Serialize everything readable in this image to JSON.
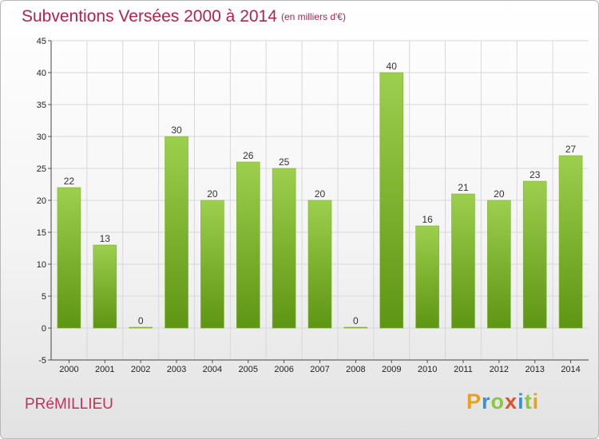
{
  "header": {
    "title": "Subventions Versées 2000 à 2014",
    "subtitle": "(en milliers d'€)"
  },
  "footer": {
    "commune": "PRéMILLIEU",
    "logo": "Proxiti",
    "logo_letters": [
      {
        "ch": "P",
        "color": "#e8a21a"
      },
      {
        "ch": "r",
        "color": "#3b8fd6"
      },
      {
        "ch": "o",
        "color": "#8cc63f"
      },
      {
        "ch": "x",
        "color": "#e0522a"
      },
      {
        "ch": "i",
        "color": "#3b8fd6"
      },
      {
        "ch": "t",
        "color": "#8cc63f"
      },
      {
        "ch": "i",
        "color": "#e8a21a"
      }
    ]
  },
  "colors": {
    "title": "#b5214d",
    "bar_top": "#9ccf4d",
    "bar_bottom": "#5e9512",
    "grid": "#d8d8d8"
  },
  "chart_data": {
    "type": "bar",
    "title": "Subventions Versées 2000 à 2014",
    "subtitle": "(en milliers d'€)",
    "xlabel": "",
    "ylabel": "",
    "categories": [
      "2000",
      "2001",
      "2002",
      "2003",
      "2004",
      "2005",
      "2006",
      "2007",
      "2008",
      "2009",
      "2010",
      "2011",
      "2012",
      "2013",
      "2014"
    ],
    "values": [
      22,
      13,
      0,
      30,
      20,
      26,
      25,
      20,
      0,
      40,
      16,
      21,
      20,
      23,
      27
    ],
    "ylim": [
      -5,
      45
    ],
    "yticks": [
      -5,
      0,
      5,
      10,
      15,
      20,
      25,
      30,
      35,
      40,
      45
    ],
    "grid": true,
    "legend": "none"
  }
}
